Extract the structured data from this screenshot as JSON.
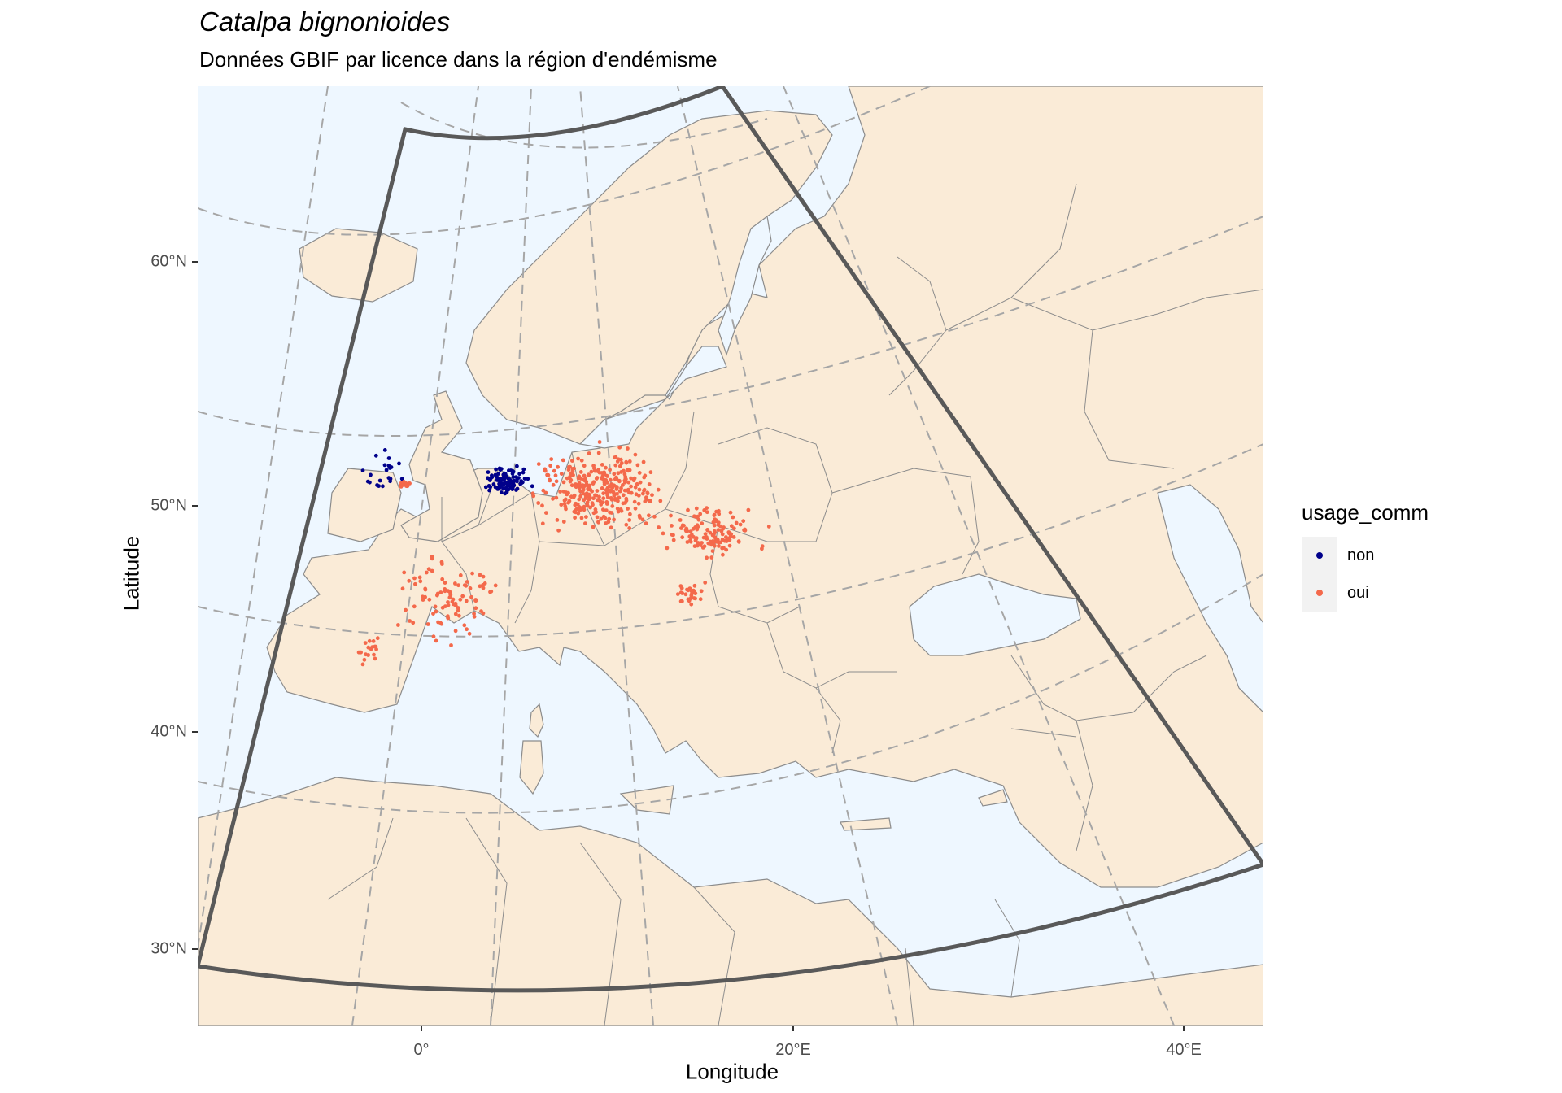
{
  "title": "Catalpa bignonioides",
  "subtitle": "Données GBIF par licence dans la région d'endémisme",
  "axes": {
    "xlabel": "Longitude",
    "ylabel": "Latitude",
    "x_ticks": [
      "0°",
      "20°E",
      "40°E"
    ],
    "y_ticks": [
      "30°N",
      "40°N",
      "50°N",
      "60°N"
    ]
  },
  "legend": {
    "title": "usage_comm",
    "items": [
      {
        "label": "non",
        "color": "#00008b"
      },
      {
        "label": "oui",
        "color": "#f4694b"
      }
    ]
  },
  "colors": {
    "ocean": "#eef7ff",
    "land": "#faebd7",
    "border": "#8c8c8c",
    "region_outline": "#595959",
    "graticule": "#a6a6a6"
  },
  "map": {
    "projection": "conic",
    "extent_lon": [
      -12,
      44
    ],
    "extent_lat": [
      27,
      70
    ],
    "endemism_region": {
      "lon": [
        -12,
        45
      ],
      "lat": [
        28,
        70
      ]
    },
    "clusters": [
      {
        "usage_comm": "non",
        "area": "Belgium / Netherlands",
        "lon": 5.5,
        "lat": 51.5,
        "n": 110
      },
      {
        "usage_comm": "non",
        "area": "England",
        "lon": -1.3,
        "lat": 52.2,
        "n": 22
      },
      {
        "usage_comm": "oui",
        "area": "Germany",
        "lon": 10.5,
        "lat": 51.0,
        "n": 320
      },
      {
        "usage_comm": "oui",
        "area": "Czechia / Austria / Hungary",
        "lon": 16.5,
        "lat": 49.0,
        "n": 130
      },
      {
        "usage_comm": "oui",
        "area": "France",
        "lon": 2.5,
        "lat": 46.0,
        "n": 95
      },
      {
        "usage_comm": "oui",
        "area": "Slovenia / Croatia",
        "lon": 15.3,
        "lat": 46.0,
        "n": 28
      },
      {
        "usage_comm": "oui",
        "area": "London",
        "lon": -0.1,
        "lat": 51.5,
        "n": 12
      },
      {
        "usage_comm": "oui",
        "area": "Basque coast",
        "lon": -1.5,
        "lat": 43.5,
        "n": 18
      }
    ]
  }
}
